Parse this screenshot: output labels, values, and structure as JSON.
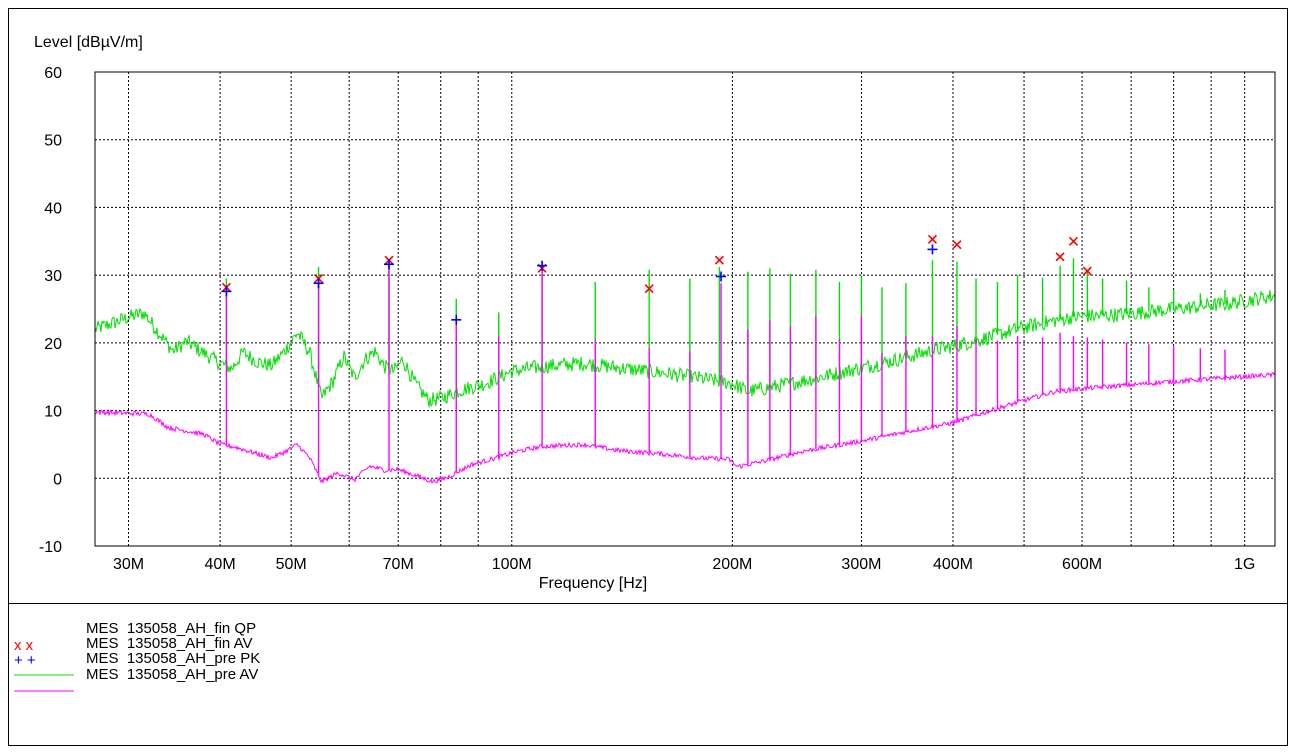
{
  "chart_data": {
    "type": "line",
    "title": "",
    "ylabel": "Level [dBµV/m]",
    "xlabel": "Frequency [Hz]",
    "x_scale": "log",
    "xlim": [
      27000000,
      1100000000
    ],
    "ylim": [
      -10,
      60
    ],
    "y_ticks": [
      -10,
      0,
      10,
      20,
      30,
      40,
      50,
      60
    ],
    "x_ticks": [
      {
        "value": 30000000,
        "label": "30M"
      },
      {
        "value": 40000000,
        "label": "40M"
      },
      {
        "value": 50000000,
        "label": "50M"
      },
      {
        "value": 60000000,
        "label": ""
      },
      {
        "value": 70000000,
        "label": "70M"
      },
      {
        "value": 80000000,
        "label": ""
      },
      {
        "value": 90000000,
        "label": ""
      },
      {
        "value": 100000000,
        "label": "100M"
      },
      {
        "value": 200000000,
        "label": "200M"
      },
      {
        "value": 300000000,
        "label": "300M"
      },
      {
        "value": 400000000,
        "label": "400M"
      },
      {
        "value": 500000000,
        "label": ""
      },
      {
        "value": 600000000,
        "label": "600M"
      },
      {
        "value": 700000000,
        "label": ""
      },
      {
        "value": 800000000,
        "label": ""
      },
      {
        "value": 900000000,
        "label": ""
      },
      {
        "value": 1000000000,
        "label": "1G"
      }
    ],
    "grid": true,
    "legend_position": "bottom",
    "series": [
      {
        "name": "MES  135058_AH_fin QP",
        "kind": "marker-x",
        "color": "#ff0000",
        "points": [
          [
            40800000,
            28.2
          ],
          [
            54500000,
            29.5
          ],
          [
            68000000,
            32.2
          ],
          [
            110000000,
            31.0
          ],
          [
            154000000,
            28.0
          ],
          [
            192000000,
            32.2
          ],
          [
            375000000,
            35.3
          ],
          [
            405000000,
            34.5
          ],
          [
            560000000,
            32.7
          ],
          [
            584000000,
            35.0
          ],
          [
            610000000,
            30.6
          ]
        ]
      },
      {
        "name": "MES  135058_AH_fin AV",
        "kind": "marker-plus",
        "color": "#0000ff",
        "points": [
          [
            40800000,
            27.6
          ],
          [
            54500000,
            28.8
          ],
          [
            68000000,
            31.6
          ],
          [
            84000000,
            23.4
          ],
          [
            110000000,
            31.4
          ],
          [
            193000000,
            29.8
          ],
          [
            375000000,
            33.8
          ]
        ]
      },
      {
        "name": "MES  135058_AH_pre PK",
        "kind": "line",
        "color": "#00e000",
        "points": [
          [
            27000000,
            22.0
          ],
          [
            29000000,
            23.2
          ],
          [
            30000000,
            23.8
          ],
          [
            31500000,
            24.4
          ],
          [
            33000000,
            21.5
          ],
          [
            34500000,
            18.8
          ],
          [
            36000000,
            20.2
          ],
          [
            38000000,
            18.5
          ],
          [
            40000000,
            17.0
          ],
          [
            41500000,
            16.2
          ],
          [
            43000000,
            18.6
          ],
          [
            45000000,
            17.2
          ],
          [
            47000000,
            16.6
          ],
          [
            49000000,
            18.8
          ],
          [
            51000000,
            21.5
          ],
          [
            53000000,
            18.6
          ],
          [
            55000000,
            11.8
          ],
          [
            57000000,
            14.3
          ],
          [
            59000000,
            18.0
          ],
          [
            61000000,
            14.8
          ],
          [
            63000000,
            17.5
          ],
          [
            65000000,
            18.8
          ],
          [
            67000000,
            16.5
          ],
          [
            69000000,
            15.8
          ],
          [
            71000000,
            17.5
          ],
          [
            74000000,
            13.8
          ],
          [
            77000000,
            11.5
          ],
          [
            80000000,
            11.8
          ],
          [
            85000000,
            13.0
          ],
          [
            92000000,
            14.0
          ],
          [
            100000000,
            15.8
          ],
          [
            110000000,
            16.5
          ],
          [
            125000000,
            17.0
          ],
          [
            140000000,
            16.3
          ],
          [
            160000000,
            15.6
          ],
          [
            180000000,
            14.8
          ],
          [
            200000000,
            14.0
          ],
          [
            210000000,
            12.8
          ],
          [
            230000000,
            13.6
          ],
          [
            270000000,
            15.2
          ],
          [
            320000000,
            17.0
          ],
          [
            380000000,
            19.0
          ],
          [
            430000000,
            20.3
          ],
          [
            500000000,
            22.3
          ],
          [
            580000000,
            23.8
          ],
          [
            680000000,
            24.2
          ],
          [
            800000000,
            25.0
          ],
          [
            950000000,
            25.8
          ],
          [
            1100000000,
            27.0
          ]
        ],
        "spikes": [
          [
            40800000,
            29.5
          ],
          [
            54500000,
            31.2
          ],
          [
            68000000,
            31.5
          ],
          [
            84000000,
            26.5
          ],
          [
            96000000,
            24.5
          ],
          [
            110000000,
            32.0
          ],
          [
            130000000,
            29.0
          ],
          [
            154000000,
            30.8
          ],
          [
            175000000,
            29.5
          ],
          [
            192000000,
            31.2
          ],
          [
            210000000,
            30.5
          ],
          [
            225000000,
            31.0
          ],
          [
            240000000,
            30.2
          ],
          [
            260000000,
            30.8
          ],
          [
            280000000,
            29.0
          ],
          [
            300000000,
            29.8
          ],
          [
            320000000,
            28.2
          ],
          [
            345000000,
            28.8
          ],
          [
            375000000,
            32.2
          ],
          [
            405000000,
            32.0
          ],
          [
            430000000,
            29.5
          ],
          [
            460000000,
            29.0
          ],
          [
            490000000,
            30.0
          ],
          [
            530000000,
            29.6
          ],
          [
            560000000,
            31.4
          ],
          [
            584000000,
            32.5
          ],
          [
            610000000,
            30.5
          ],
          [
            640000000,
            29.5
          ],
          [
            690000000,
            29.2
          ],
          [
            740000000,
            28.2
          ],
          [
            800000000,
            27.8
          ],
          [
            870000000,
            27.3
          ],
          [
            940000000,
            27.8
          ]
        ]
      },
      {
        "name": "MES  135058_AH_pre AV",
        "kind": "line",
        "color": "#ff00ff",
        "points": [
          [
            27000000,
            9.8
          ],
          [
            30000000,
            9.6
          ],
          [
            32000000,
            9.5
          ],
          [
            34000000,
            7.5
          ],
          [
            36000000,
            7.0
          ],
          [
            38000000,
            6.5
          ],
          [
            40000000,
            5.0
          ],
          [
            42000000,
            4.6
          ],
          [
            45000000,
            3.6
          ],
          [
            47000000,
            3.0
          ],
          [
            49000000,
            3.9
          ],
          [
            51000000,
            5.0
          ],
          [
            53000000,
            3.0
          ],
          [
            55000000,
            -0.5
          ],
          [
            58000000,
            0.8
          ],
          [
            61000000,
            -0.2
          ],
          [
            64000000,
            1.8
          ],
          [
            67000000,
            1.2
          ],
          [
            70000000,
            1.3
          ],
          [
            74000000,
            0.4
          ],
          [
            78000000,
            -0.5
          ],
          [
            82000000,
            0.2
          ],
          [
            88000000,
            2.0
          ],
          [
            95000000,
            3.0
          ],
          [
            102000000,
            4.0
          ],
          [
            110000000,
            4.7
          ],
          [
            125000000,
            5.0
          ],
          [
            140000000,
            4.1
          ],
          [
            160000000,
            3.6
          ],
          [
            180000000,
            3.0
          ],
          [
            198000000,
            2.8
          ],
          [
            203000000,
            1.7
          ],
          [
            220000000,
            2.5
          ],
          [
            250000000,
            4.0
          ],
          [
            300000000,
            5.5
          ],
          [
            350000000,
            7.0
          ],
          [
            400000000,
            8.2
          ],
          [
            450000000,
            10.0
          ],
          [
            500000000,
            11.5
          ],
          [
            550000000,
            12.8
          ],
          [
            610000000,
            13.3
          ],
          [
            700000000,
            13.8
          ],
          [
            800000000,
            14.3
          ],
          [
            1100000000,
            15.3
          ]
        ],
        "spikes": [
          [
            40800000,
            28.0
          ],
          [
            54500000,
            28.8
          ],
          [
            68000000,
            31.2
          ],
          [
            84000000,
            23.5
          ],
          [
            96000000,
            21.0
          ],
          [
            110000000,
            30.8
          ],
          [
            130000000,
            20.5
          ],
          [
            154000000,
            19.2
          ],
          [
            175000000,
            18.8
          ],
          [
            193000000,
            28.8
          ],
          [
            210000000,
            22.0
          ],
          [
            225000000,
            23.3
          ],
          [
            240000000,
            22.5
          ],
          [
            260000000,
            24.0
          ],
          [
            280000000,
            20.5
          ],
          [
            300000000,
            24.0
          ],
          [
            320000000,
            18.5
          ],
          [
            345000000,
            21.0
          ],
          [
            375000000,
            21.0
          ],
          [
            405000000,
            22.5
          ],
          [
            430000000,
            20.5
          ],
          [
            460000000,
            20.3
          ],
          [
            490000000,
            21.0
          ],
          [
            530000000,
            20.8
          ],
          [
            560000000,
            21.5
          ],
          [
            584000000,
            21.0
          ],
          [
            610000000,
            20.8
          ],
          [
            640000000,
            20.5
          ],
          [
            690000000,
            20.0
          ],
          [
            740000000,
            19.8
          ],
          [
            800000000,
            19.5
          ],
          [
            870000000,
            19.2
          ],
          [
            940000000,
            19.0
          ]
        ]
      }
    ]
  }
}
